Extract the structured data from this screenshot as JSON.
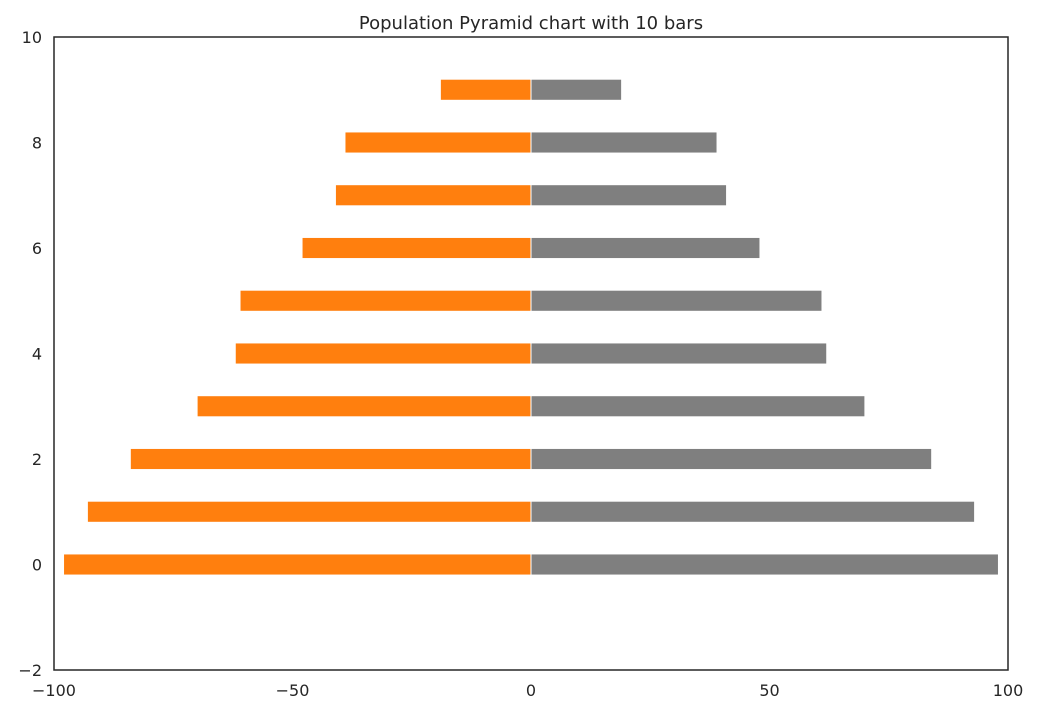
{
  "chart_data": {
    "type": "bar",
    "orientation": "horizontal",
    "title": "Population Pyramid chart with 10 bars",
    "xlabel": "",
    "ylabel": "",
    "xlim": [
      -100,
      100
    ],
    "ylim": [
      -2,
      10
    ],
    "x_ticks": [
      -100,
      -50,
      0,
      50,
      100
    ],
    "y_ticks": [
      -2,
      0,
      2,
      4,
      6,
      8,
      10
    ],
    "x_tick_labels": [
      "−100",
      "−50",
      "0",
      "50",
      "100"
    ],
    "y_tick_labels": [
      "−2",
      "0",
      "2",
      "4",
      "6",
      "8",
      "10"
    ],
    "grid": false,
    "legend": "none",
    "categories": [
      0,
      1,
      2,
      3,
      4,
      5,
      6,
      7,
      8,
      9
    ],
    "series": [
      {
        "color": "#ff7f0e",
        "values": [
          -98,
          -93,
          -84,
          -70,
          -62,
          -61,
          -48,
          -41,
          -39,
          -19
        ]
      },
      {
        "color": "#7f7f7f",
        "values": [
          98,
          93,
          84,
          70,
          62,
          61,
          48,
          41,
          39,
          19
        ]
      }
    ]
  }
}
